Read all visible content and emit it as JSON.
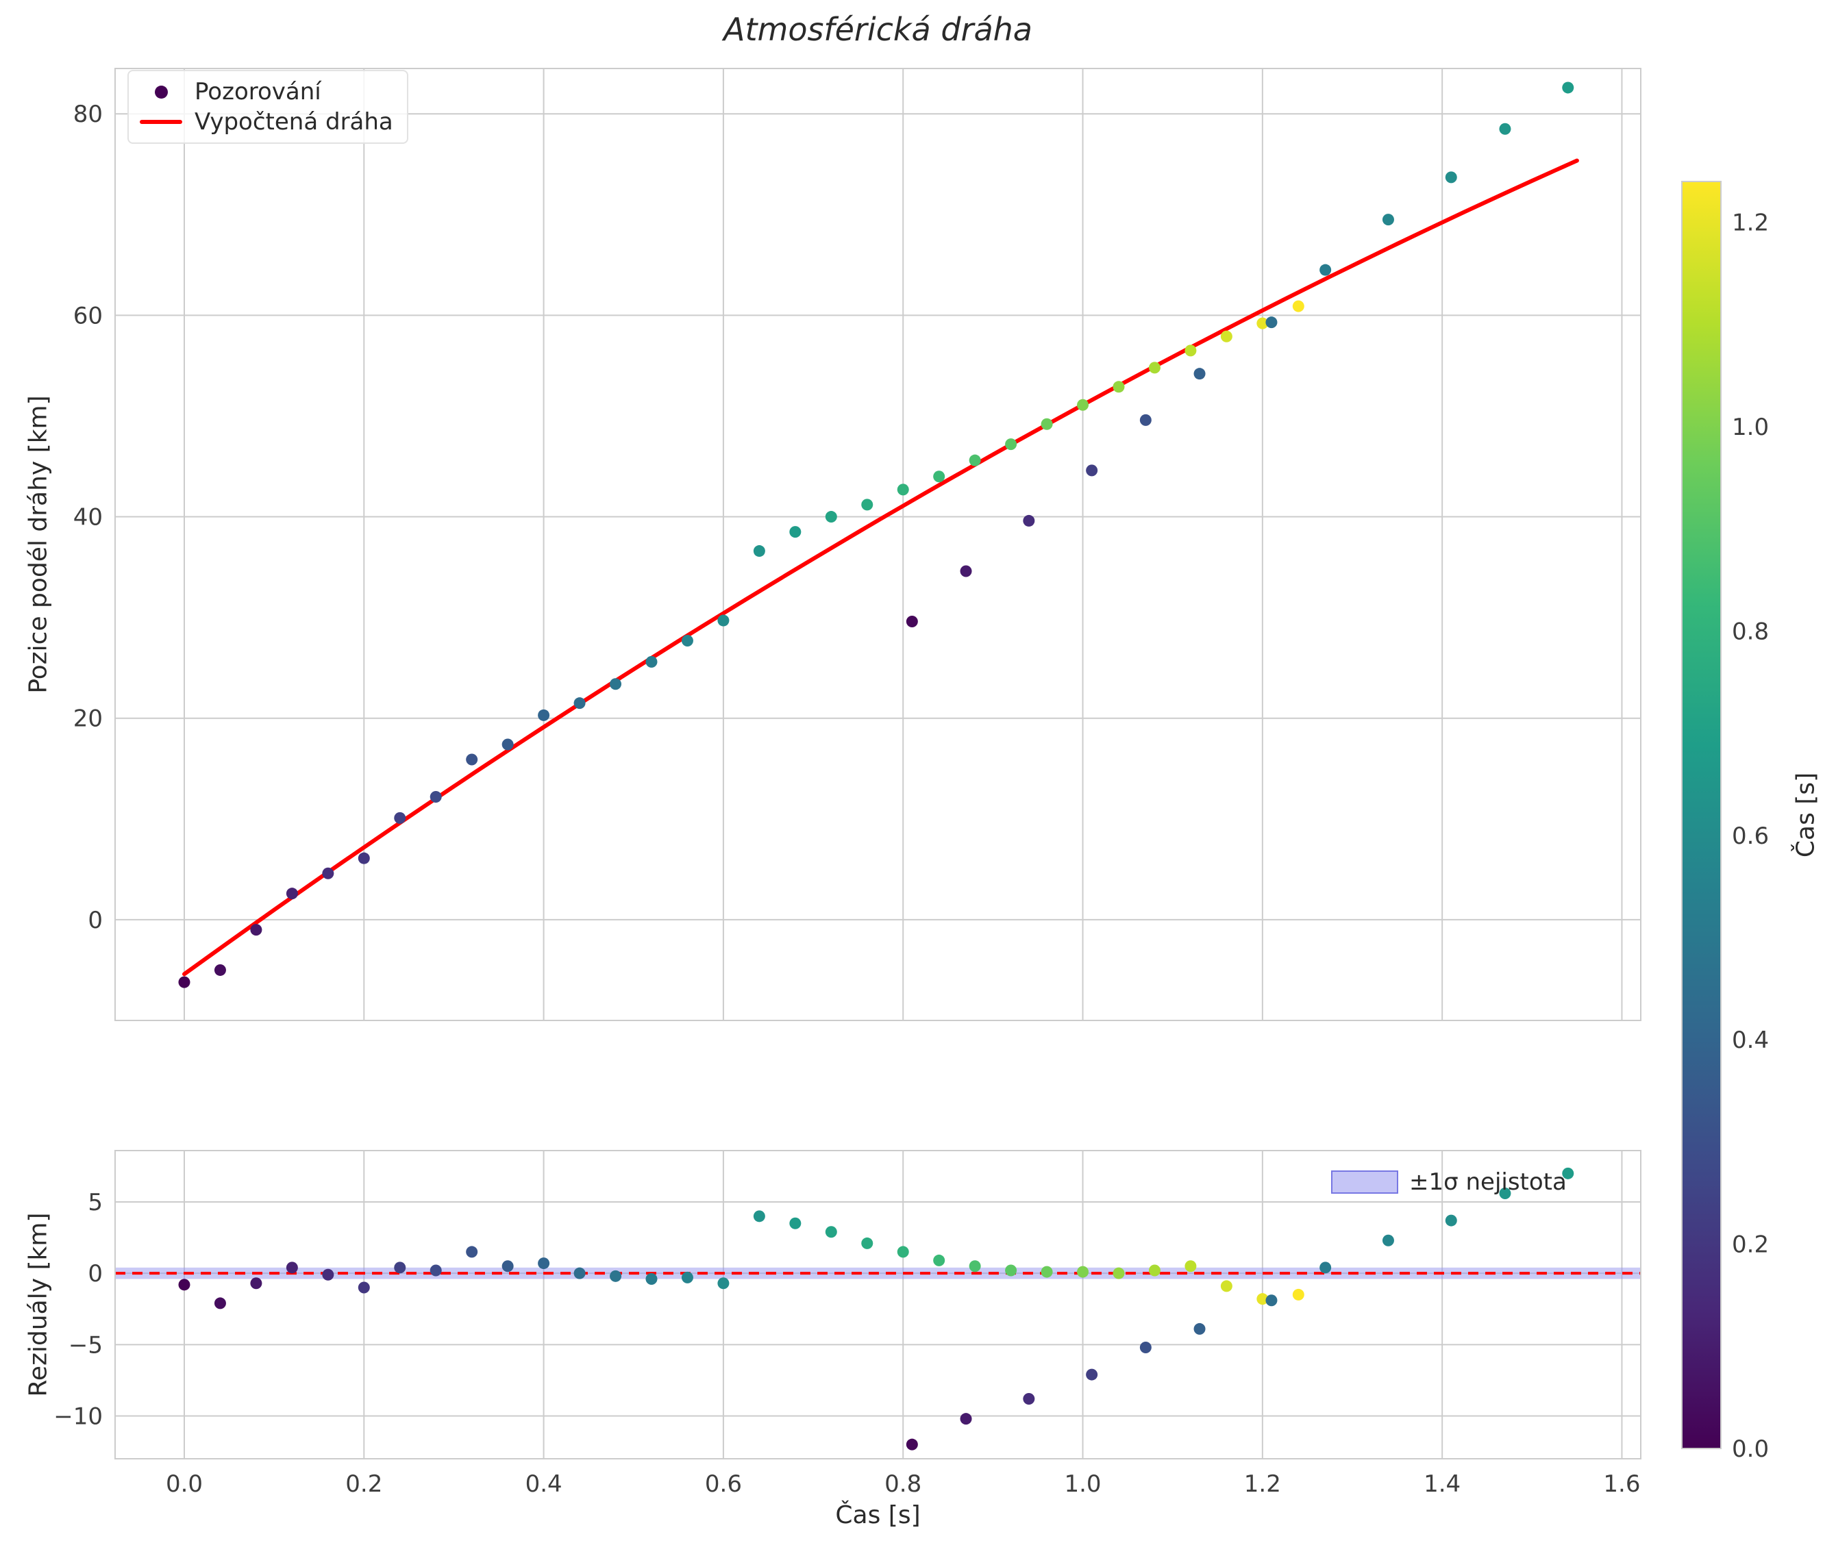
{
  "figure": {
    "title": "Atmosférická dráha",
    "xlabel": "Čas [s]",
    "top": {
      "ylabel": "Pozice podél dráhy [km]"
    },
    "bottom": {
      "ylabel": "Reziduály [km]"
    },
    "legend_top": {
      "observations": "Pozorování",
      "fit": "Vypočtená dráha"
    },
    "legend_bottom": {
      "band": "±1σ nejistota"
    },
    "colorbar": {
      "label": "Čas [s]"
    }
  },
  "chart_data": {
    "type": "scatter",
    "title": "Atmosférická dráha",
    "xlabel": "Čas [s]",
    "colormap": "viridis",
    "colorbar": {
      "label": "Čas [s]",
      "vmin": 0,
      "vmax": 1.24,
      "tick_values": [
        0.0,
        0.2,
        0.4,
        0.6,
        0.8,
        1.0,
        1.2
      ],
      "tick_labels": [
        "0.0",
        "0.2",
        "0.4",
        "0.6",
        "0.8",
        "1.0",
        "1.2"
      ]
    },
    "x_ticks": {
      "values": [
        0.0,
        0.2,
        0.4,
        0.6,
        0.8,
        1.0,
        1.2,
        1.4,
        1.6
      ],
      "labels": [
        "0.0",
        "0.2",
        "0.4",
        "0.6",
        "0.8",
        "1.0",
        "1.2",
        "1.4",
        "1.6"
      ]
    },
    "panels": [
      {
        "id": "trajectory",
        "ylabel": "Pozice podél dráhy [km]",
        "xlim": [
          -0.077,
          1.621
        ],
        "ylim": [
          -10.0,
          84.5
        ],
        "y_tick_values": [
          0,
          20,
          40,
          60,
          80
        ],
        "y_tick_labels": [
          "0",
          "20",
          "40",
          "60",
          "80"
        ],
        "grid": true
      },
      {
        "id": "residuals",
        "ylabel": "Reziduály [km]",
        "xlim": [
          -0.077,
          1.621
        ],
        "ylim": [
          -13.0,
          8.6
        ],
        "y_tick_values": [
          -10,
          -5,
          0,
          5
        ],
        "y_tick_labels": [
          "−10",
          "−5",
          "0",
          "5"
        ],
        "grid": true,
        "zero_line": {
          "color": "#ff0000",
          "style": "dashed"
        },
        "uncertainty_band": {
          "halfwidth_km": 0.4,
          "color": "rgba(150,150,238,0.5)",
          "label": "±1σ nejistota"
        }
      }
    ],
    "fit_curve": {
      "label": "Vypočtená dráha",
      "color": "#ff0000",
      "model": "y = a + b·t + c·t²",
      "a": -5.4,
      "b": 64.5,
      "c": -8.0,
      "t_range": [
        0.0,
        1.55
      ]
    },
    "points_label": "Pozorování",
    "points_format": [
      "t_s",
      "position_km",
      "residual_km",
      "color_time_s"
    ],
    "points": [
      [
        0.0,
        -6.2,
        -0.8,
        0.0
      ],
      [
        0.04,
        -5.0,
        -2.1,
        0.04
      ],
      [
        0.08,
        -1.0,
        -0.7,
        0.08
      ],
      [
        0.12,
        2.6,
        0.4,
        0.12
      ],
      [
        0.16,
        4.6,
        -0.1,
        0.16
      ],
      [
        0.2,
        6.1,
        -1.0,
        0.2
      ],
      [
        0.24,
        10.1,
        0.4,
        0.24
      ],
      [
        0.28,
        12.2,
        0.2,
        0.28
      ],
      [
        0.32,
        15.9,
        1.5,
        0.32
      ],
      [
        0.36,
        17.4,
        0.5,
        0.36
      ],
      [
        0.4,
        20.3,
        0.7,
        0.4
      ],
      [
        0.44,
        21.5,
        0.0,
        0.44
      ],
      [
        0.48,
        23.4,
        -0.2,
        0.48
      ],
      [
        0.52,
        25.6,
        -0.4,
        0.52
      ],
      [
        0.56,
        27.7,
        -0.3,
        0.56
      ],
      [
        0.6,
        29.7,
        -0.7,
        0.6
      ],
      [
        0.64,
        36.6,
        4.0,
        0.64
      ],
      [
        0.68,
        38.5,
        3.5,
        0.68
      ],
      [
        0.72,
        40.0,
        2.9,
        0.72
      ],
      [
        0.76,
        41.2,
        2.1,
        0.76
      ],
      [
        0.8,
        42.7,
        1.5,
        0.8
      ],
      [
        0.84,
        44.0,
        0.9,
        0.84
      ],
      [
        0.88,
        45.6,
        0.5,
        0.88
      ],
      [
        0.92,
        47.2,
        0.2,
        0.92
      ],
      [
        0.96,
        49.2,
        0.1,
        0.96
      ],
      [
        1.0,
        51.1,
        0.1,
        1.0
      ],
      [
        1.04,
        52.9,
        0.0,
        1.04
      ],
      [
        1.08,
        54.8,
        0.2,
        1.08
      ],
      [
        1.12,
        56.5,
        0.5,
        1.12
      ],
      [
        1.16,
        57.9,
        -0.9,
        1.16
      ],
      [
        1.2,
        59.2,
        -1.8,
        1.2
      ],
      [
        1.24,
        60.9,
        -1.5,
        1.24
      ],
      [
        0.81,
        29.6,
        -12.0,
        0.02
      ],
      [
        0.87,
        34.6,
        -10.2,
        0.09
      ],
      [
        0.94,
        39.6,
        -8.8,
        0.16
      ],
      [
        1.01,
        44.6,
        -7.1,
        0.23
      ],
      [
        1.07,
        49.6,
        -5.2,
        0.31
      ],
      [
        1.13,
        54.2,
        -3.9,
        0.38
      ],
      [
        1.21,
        59.3,
        -1.9,
        0.45
      ],
      [
        1.27,
        64.5,
        0.4,
        0.52
      ],
      [
        1.34,
        69.5,
        2.3,
        0.57
      ],
      [
        1.41,
        73.7,
        3.7,
        0.61
      ],
      [
        1.47,
        78.5,
        5.6,
        0.65
      ],
      [
        1.54,
        82.6,
        7.0,
        0.68
      ]
    ]
  }
}
